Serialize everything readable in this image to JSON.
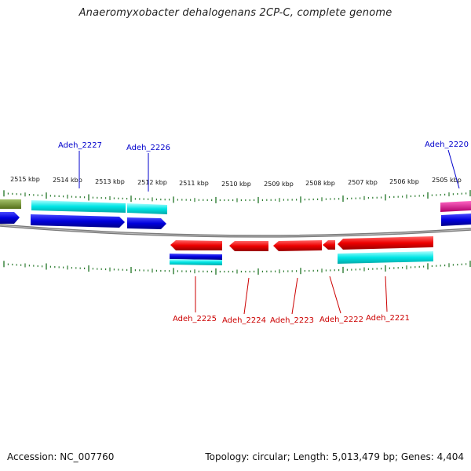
{
  "title": "Anaeromyxobacter dehalogenans 2CP-C, complete genome",
  "footer": {
    "accession": "Accession: NC_007760",
    "topology": "Topology: circular; Length: 5,013,479 bp; Genes: 4,404"
  },
  "kbp_labels": [
    "2515 kbp",
    "2514 kbp",
    "2513 kbp",
    "2512 kbp",
    "2511 kbp",
    "2510 kbp",
    "2509 kbp",
    "2508 kbp",
    "2507 kbp",
    "2506 kbp",
    "2505 kbp"
  ],
  "gene_labels_top": [
    "Adeh_2227",
    "Adeh_2226",
    "Adeh_2220"
  ],
  "gene_labels_bottom": [
    "Adeh_2225",
    "Adeh_2224",
    "Adeh_2223",
    "Adeh_2222",
    "Adeh_2221"
  ],
  "colors": {
    "forward_cds": "#0000dd",
    "forward_rna_cyan": "#00e5e5",
    "reverse_cds": "#ee0000",
    "backbone": "#808080",
    "ticks": "#2e7d32",
    "label_top": "#0000cc",
    "label_bottom": "#cc0000",
    "olive_feature": "#6b8e23",
    "magenta_feature": "#e0108a"
  }
}
